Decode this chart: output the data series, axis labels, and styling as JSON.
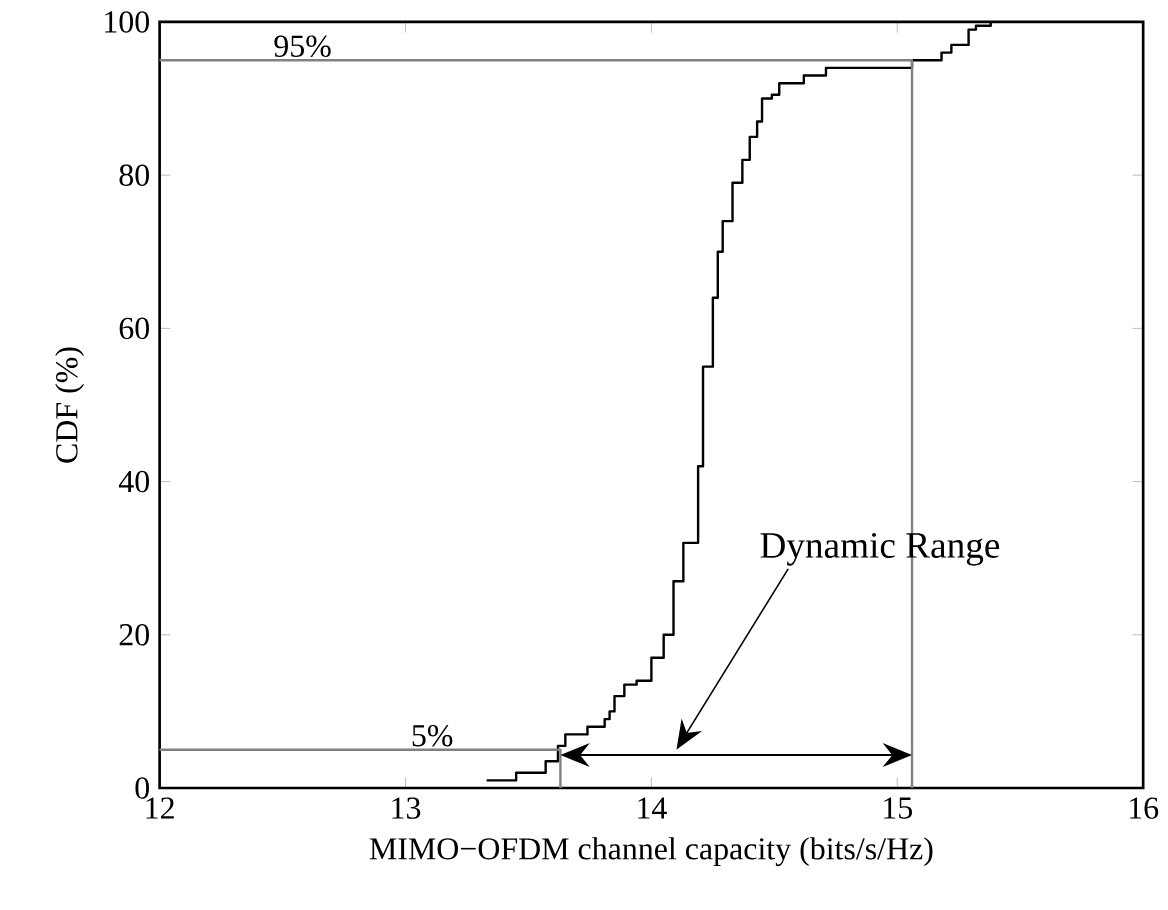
{
  "chart_data": {
    "type": "step",
    "xlabel": "MIMO−OFDM channel capacity (bits/s/Hz)",
    "ylabel": "CDF (%)",
    "xlim": [
      12,
      16
    ],
    "ylim": [
      0,
      100
    ],
    "xticks": [
      12,
      13,
      14,
      15,
      16
    ],
    "yticks": [
      0,
      20,
      40,
      60,
      80,
      100
    ],
    "series": [
      {
        "color": "#000000",
        "x": [
          13.33,
          13.45,
          13.57,
          13.62,
          13.65,
          13.74,
          13.81,
          13.83,
          13.85,
          13.89,
          13.94,
          14.0,
          14.05,
          14.09,
          14.13,
          14.19,
          14.21,
          14.25,
          14.27,
          14.29,
          14.33,
          14.37,
          14.4,
          14.43,
          14.45,
          14.49,
          14.52,
          14.62,
          14.71,
          15.06,
          15.18,
          15.22,
          15.25,
          15.29,
          15.32,
          15.38
        ],
        "values": [
          1,
          2,
          3.5,
          5.5,
          7,
          8,
          9,
          10,
          12,
          13.5,
          14,
          17,
          20,
          27,
          32,
          42,
          55,
          64,
          70,
          74,
          79,
          82,
          85,
          87,
          90,
          90.5,
          92,
          93,
          94,
          95,
          96,
          97,
          97,
          99,
          99.5,
          100
        ]
      },
      {
        "type": "line",
        "color": "#808080",
        "x": [
          12,
          15.06,
          15.06
        ],
        "values": [
          95,
          95,
          0
        ]
      },
      {
        "type": "line",
        "color": "#808080",
        "x": [
          12,
          13.63,
          13.63
        ],
        "values": [
          5,
          5,
          0
        ]
      }
    ],
    "annotations": [
      "95%",
      "5%",
      "Dynamic Range"
    ]
  }
}
